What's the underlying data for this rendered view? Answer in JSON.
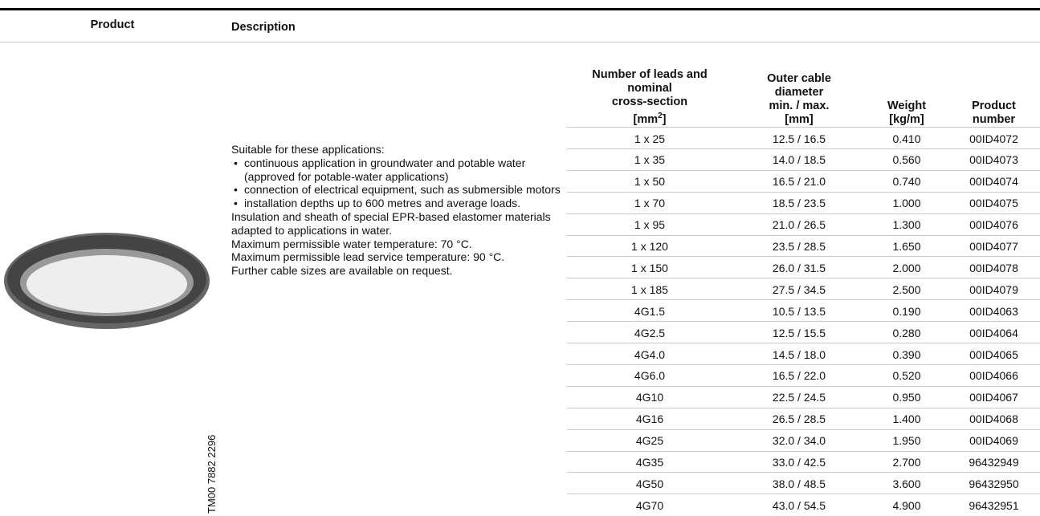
{
  "header": {
    "product": "Product",
    "description": "Description"
  },
  "image_code": "TM00 7882 2296",
  "description": {
    "intro": "Suitable for these applications:",
    "bullets": [
      "continuous application in groundwater and potable water (approved for potable-water applications)",
      "connection of electrical equipment, such as submersible motors",
      "installation depths up to 600 metres and average loads."
    ],
    "paragraphs": [
      "Insulation and sheath of special EPR-based elastomer materials adapted to applications in water.",
      "Maximum permissible water temperature: 70 °C.",
      "Maximum permissible lead service temperature: 90 °C.",
      "Further cable sizes are available on request."
    ]
  },
  "table": {
    "header": [
      {
        "lines": [
          "Number of leads and",
          "nominal",
          "cross-section"
        ],
        "unit": [
          "[mm",
          "2",
          "]"
        ]
      },
      {
        "lines": [
          "Outer cable",
          "diameter",
          "min. / max.",
          "[mm]"
        ]
      },
      {
        "lines": [
          "Weight",
          "[kg/m]"
        ]
      },
      {
        "lines": [
          "Product",
          "number"
        ]
      }
    ],
    "rows": [
      [
        "1 x 25",
        "12.5 / 16.5",
        "0.410",
        "00ID4072"
      ],
      [
        "1 x 35",
        "14.0 / 18.5",
        "0.560",
        "00ID4073"
      ],
      [
        "1 x 50",
        "16.5 / 21.0",
        "0.740",
        "00ID4074"
      ],
      [
        "1 x 70",
        "18.5 / 23.5",
        "1.000",
        "00ID4075"
      ],
      [
        "1 x 95",
        "21.0 / 26.5",
        "1.300",
        "00ID4076"
      ],
      [
        "1 x 120",
        "23.5 / 28.5",
        "1.650",
        "00ID4077"
      ],
      [
        "1 x 150",
        "26.0 / 31.5",
        "2.000",
        "00ID4078"
      ],
      [
        "1 x 185",
        "27.5 / 34.5",
        "2.500",
        "00ID4079"
      ],
      [
        "4G1.5",
        "10.5 / 13.5",
        "0.190",
        "00ID4063"
      ],
      [
        "4G2.5",
        "12.5 / 15.5",
        "0.280",
        "00ID4064"
      ],
      [
        "4G4.0",
        "14.5 / 18.0",
        "0.390",
        "00ID4065"
      ],
      [
        "4G6.0",
        "16.5 / 22.0",
        "0.520",
        "00ID4066"
      ],
      [
        "4G10",
        "22.5 / 24.5",
        "0.950",
        "00ID4067"
      ],
      [
        "4G16",
        "26.5 / 28.5",
        "1.400",
        "00ID4068"
      ],
      [
        "4G25",
        "32.0 / 34.0",
        "1.950",
        "00ID4069"
      ],
      [
        "4G35",
        "33.0 / 42.5",
        "2.700",
        "96432949"
      ],
      [
        "4G50",
        "38.0 / 48.5",
        "3.600",
        "96432950"
      ],
      [
        "4G70",
        "43.0 / 54.5",
        "4.900",
        "96432951"
      ]
    ]
  }
}
